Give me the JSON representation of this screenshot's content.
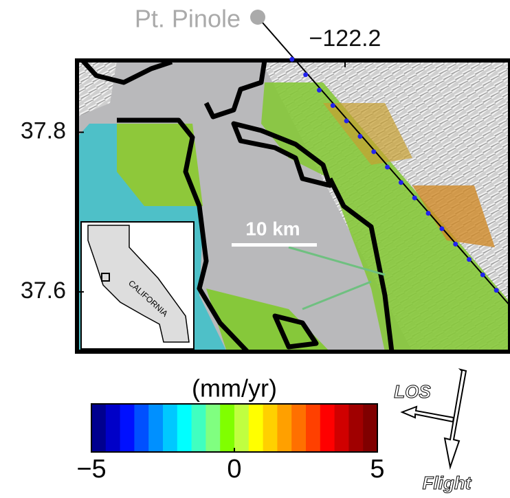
{
  "map": {
    "place_label": "Pt. Pinole",
    "xlim": [
      -122.46,
      -122.04
    ],
    "ylim": [
      37.525,
      37.89
    ],
    "xticks": [
      {
        "value": -122.2,
        "label": "−122.2"
      }
    ],
    "yticks": [
      37.8,
      37.6
    ],
    "scale_bar": "10 km",
    "inset_label": "CALIFORNIA",
    "colorbar": {
      "label": "(mm/yr)",
      "lim": [
        -5,
        5
      ],
      "ticks": [
        {
          "value": -5,
          "label": "−5"
        },
        0,
        5
      ],
      "colors": [
        "#00008f",
        "#0000c8",
        "#0010ff",
        "#0050ff",
        "#0090ff",
        "#00c8ff",
        "#00ffff",
        "#40ffc0",
        "#80ff80",
        "#80ff00",
        "#c0ff40",
        "#ffff00",
        "#ffd000",
        "#ffa000",
        "#ff7000",
        "#ff4000",
        "#ff0000",
        "#d00000",
        "#a00000",
        "#800000"
      ]
    },
    "los_label": "LOS",
    "flight_label": "Flight"
  }
}
